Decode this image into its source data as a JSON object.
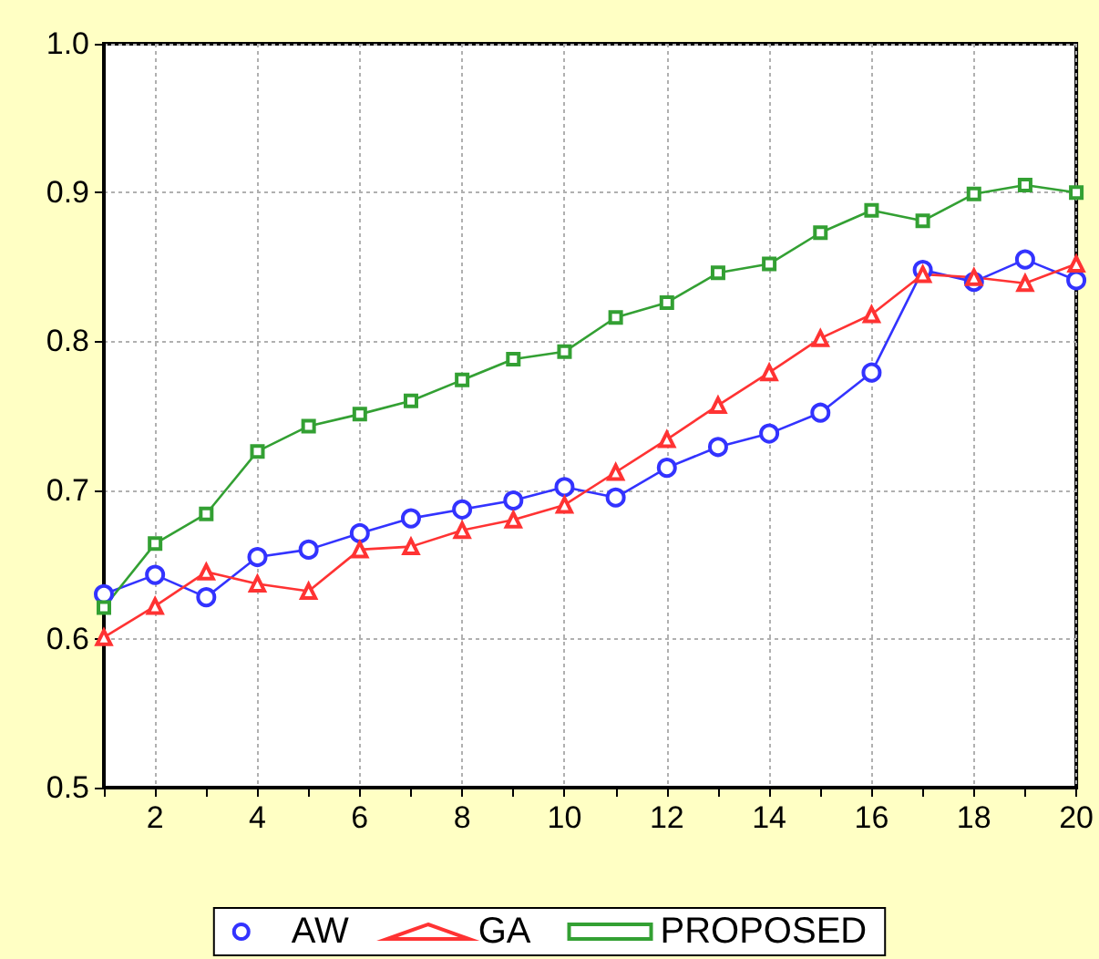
{
  "chart_data": {
    "type": "line",
    "x": [
      1,
      2,
      3,
      4,
      5,
      6,
      7,
      8,
      9,
      10,
      11,
      12,
      13,
      14,
      15,
      16,
      17,
      18,
      19,
      20
    ],
    "xlim": [
      1,
      20
    ],
    "xticks": [
      {
        "value": 1,
        "label": null
      },
      2,
      {
        "value": 3,
        "label": null
      },
      4,
      {
        "value": 5,
        "label": null
      },
      6,
      {
        "value": 7,
        "label": null
      },
      8,
      {
        "value": 9,
        "label": null
      },
      10,
      {
        "value": 11,
        "label": null
      },
      12,
      {
        "value": 13,
        "label": null
      },
      14,
      {
        "value": 15,
        "label": null
      },
      16,
      {
        "value": 17,
        "label": null
      },
      18,
      {
        "value": 19,
        "label": null
      },
      20
    ],
    "ylim": [
      0.5,
      1.0
    ],
    "yticks": [
      0.5,
      0.6,
      0.7,
      0.8,
      0.9,
      {
        "value": 1.0,
        "label": "1.0"
      }
    ],
    "grid": true,
    "legend": "bottom",
    "line_style": "solid",
    "series": [
      {
        "name": "AW",
        "color": "#3333ff",
        "marker": "circle",
        "values": [
          0.63,
          0.643,
          0.628,
          0.655,
          0.66,
          0.671,
          0.681,
          0.687,
          0.693,
          0.702,
          0.695,
          0.715,
          0.729,
          0.738,
          0.752,
          0.779,
          0.848,
          0.84,
          0.855,
          0.841
        ]
      },
      {
        "name": "GA",
        "color": "#ff3333",
        "marker": "triangle",
        "values": [
          0.601,
          0.622,
          0.645,
          0.637,
          0.632,
          0.66,
          0.662,
          0.673,
          0.68,
          0.69,
          0.712,
          0.734,
          0.757,
          0.779,
          0.802,
          0.818,
          0.845,
          0.843,
          0.839,
          0.852
        ]
      },
      {
        "name": "PROPOSED",
        "color": "#33a033",
        "marker": "square",
        "values": [
          0.621,
          0.664,
          0.684,
          0.726,
          0.743,
          0.751,
          0.76,
          0.774,
          0.788,
          0.793,
          0.816,
          0.826,
          0.846,
          0.852,
          0.873,
          0.888,
          0.881,
          0.899,
          0.905,
          0.9
        ]
      }
    ]
  }
}
